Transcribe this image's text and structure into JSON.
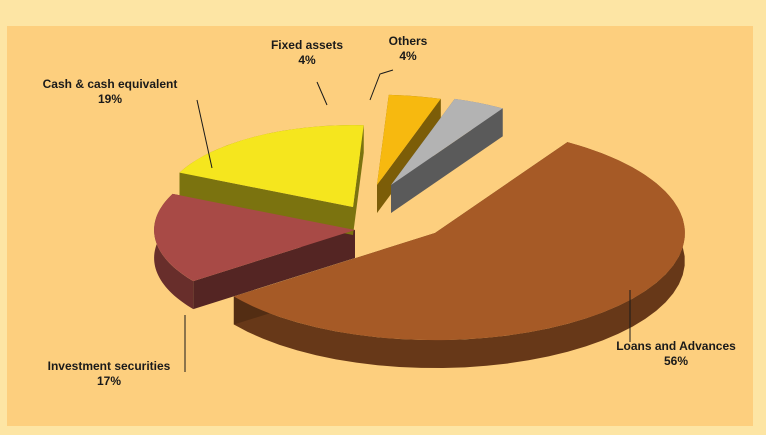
{
  "chart_data": {
    "type": "pie",
    "style": "3d-exploded",
    "categories": [
      "Loans and Advances",
      "Investment securities",
      "Cash & cash equivalent",
      "Fixed assets",
      "Others"
    ],
    "values": [
      56,
      17,
      19,
      4,
      4
    ],
    "value_labels": [
      "56%",
      "17%",
      "19%",
      "4%",
      "4%"
    ],
    "colors": [
      "#a65a26",
      "#a84a46",
      "#f5e61e",
      "#f7b90f",
      "#b3b3b3"
    ],
    "title": "",
    "legend": "none"
  }
}
